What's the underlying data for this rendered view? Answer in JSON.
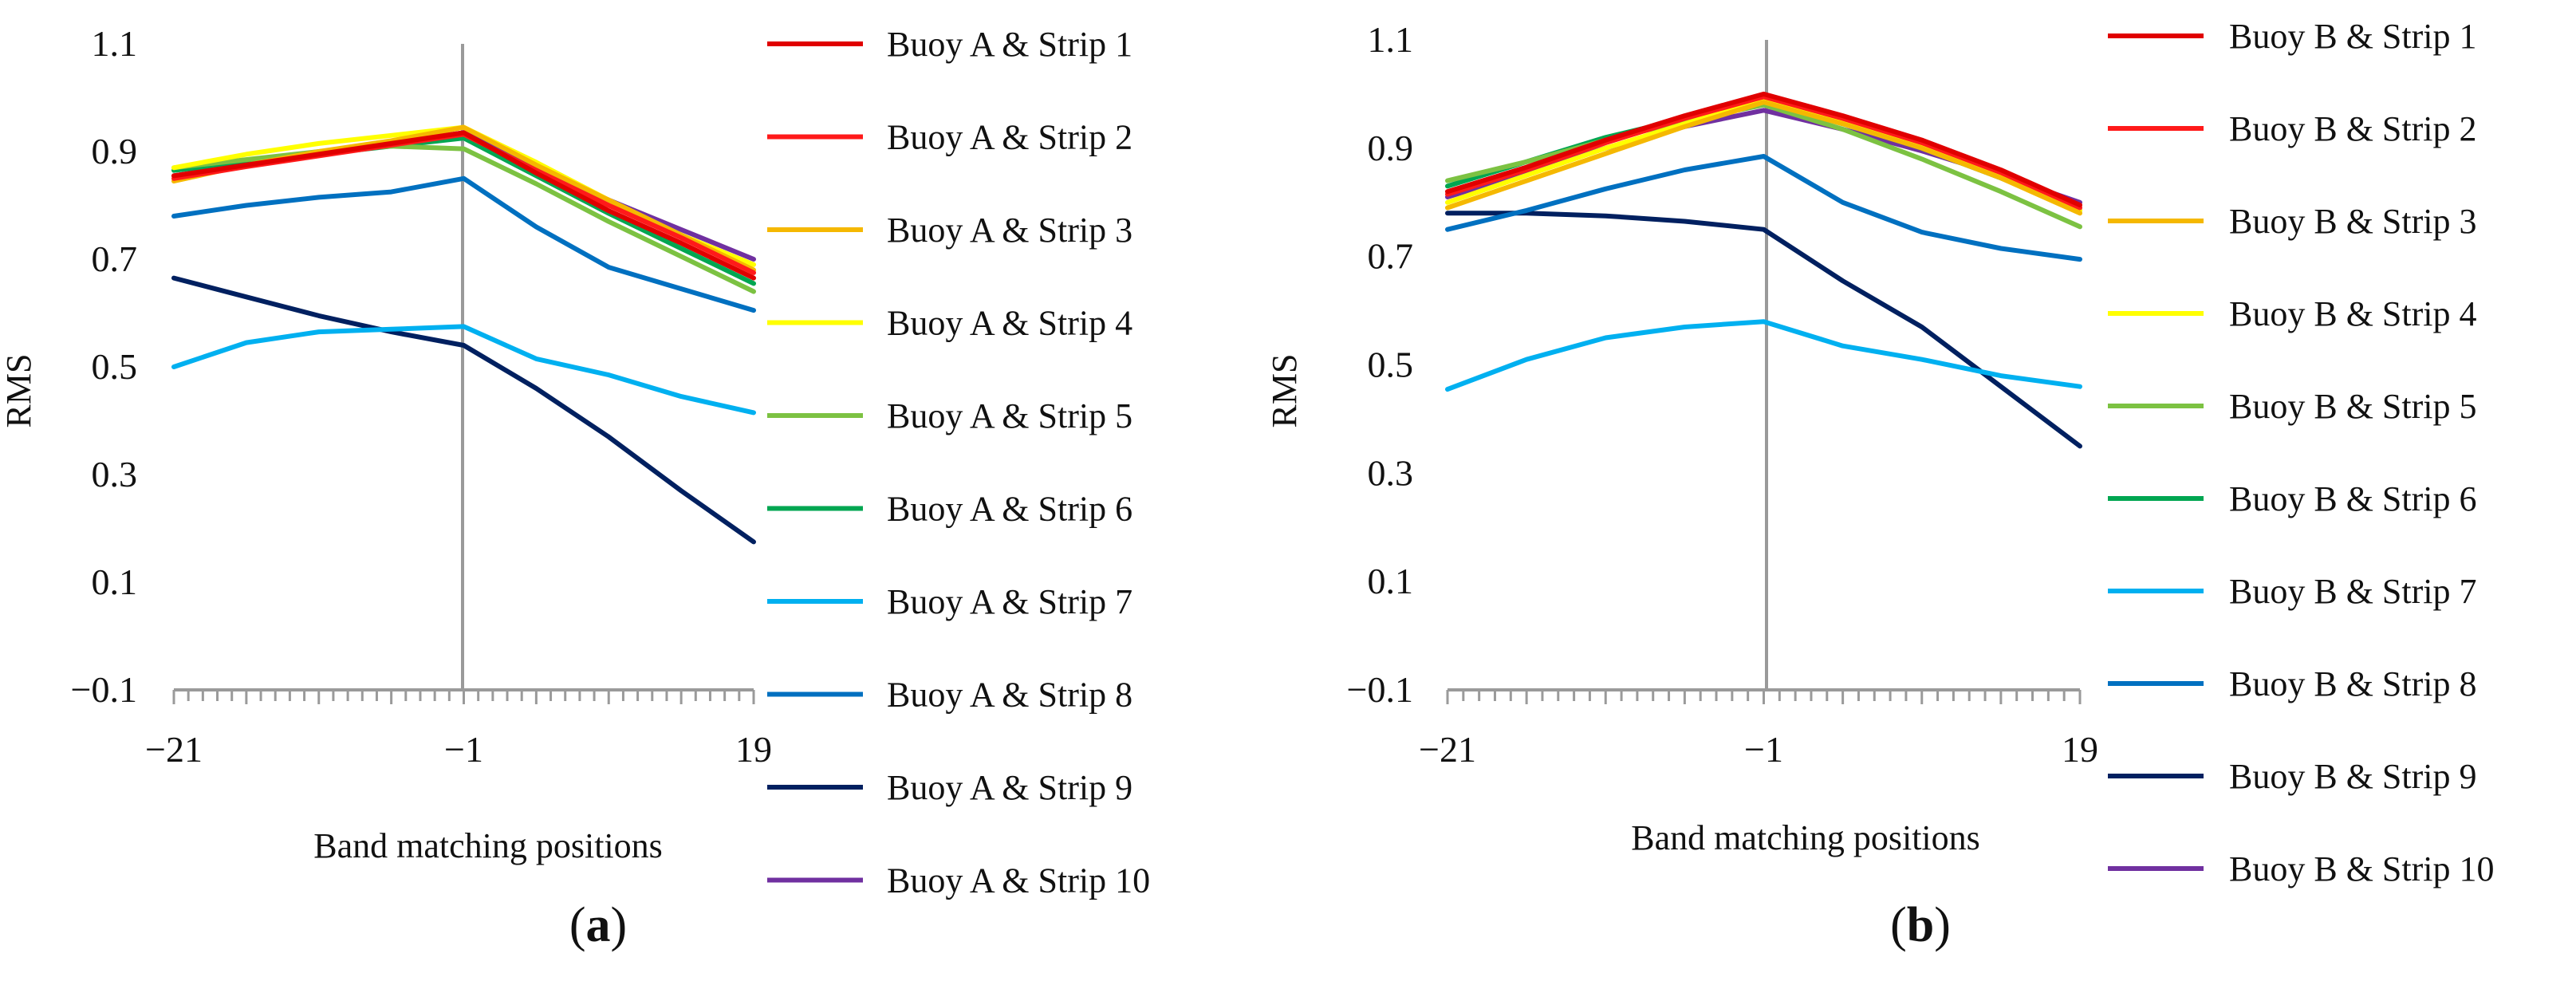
{
  "chart_data": [
    {
      "type": "line",
      "panel": "a",
      "panel_label": "a",
      "xlabel": "Band matching positions",
      "ylabel": "RMS",
      "xlim": [
        -21,
        19
      ],
      "ylim": [
        -0.1,
        1.1
      ],
      "yticks": [
        -0.1,
        0.1,
        0.3,
        0.5,
        0.7,
        0.9,
        1.1
      ],
      "ytick_labels": [
        "−0.1",
        "0.1",
        "0.3",
        "0.5",
        "0.7",
        "0.9",
        "1.1"
      ],
      "xticks": [
        -21,
        -1,
        19
      ],
      "xtick_labels": [
        "−21",
        "−1",
        "19"
      ],
      "x": [
        -21,
        -16,
        -11,
        -6,
        -1,
        4,
        9,
        14,
        19
      ],
      "series": [
        {
          "name": "Buoy A & Strip 1",
          "color": "#e00000",
          "values": [
            0.855,
            0.875,
            0.895,
            0.915,
            0.935,
            0.86,
            0.79,
            0.73,
            0.665
          ]
        },
        {
          "name": "Buoy A & Strip 2",
          "color": "#ff1a1a",
          "values": [
            0.85,
            0.872,
            0.892,
            0.912,
            0.932,
            0.865,
            0.8,
            0.74,
            0.675
          ]
        },
        {
          "name": "Buoy A & Strip 3",
          "color": "#f5b800",
          "values": [
            0.845,
            0.875,
            0.9,
            0.92,
            0.945,
            0.875,
            0.81,
            0.745,
            0.68
          ]
        },
        {
          "name": "Buoy A & Strip 4",
          "color": "#ffff00",
          "values": [
            0.87,
            0.895,
            0.915,
            0.93,
            0.945,
            0.88,
            0.81,
            0.745,
            0.69
          ]
        },
        {
          "name": "Buoy A & Strip 5",
          "color": "#7cc242",
          "values": [
            0.87,
            0.885,
            0.9,
            0.91,
            0.905,
            0.84,
            0.77,
            0.705,
            0.64
          ]
        },
        {
          "name": "Buoy A & Strip 6",
          "color": "#00a651",
          "values": [
            0.865,
            0.88,
            0.895,
            0.91,
            0.925,
            0.855,
            0.785,
            0.72,
            0.655
          ]
        },
        {
          "name": "Buoy A & Strip 7",
          "color": "#00b0f0",
          "values": [
            0.5,
            0.545,
            0.565,
            0.57,
            0.575,
            0.515,
            0.485,
            0.445,
            0.415
          ]
        },
        {
          "name": "Buoy A & Strip 8",
          "color": "#0070c0",
          "values": [
            0.78,
            0.8,
            0.815,
            0.825,
            0.85,
            0.76,
            0.685,
            0.645,
            0.605
          ]
        },
        {
          "name": "Buoy A & Strip 9",
          "color": "#002060",
          "values": [
            0.665,
            0.63,
            0.595,
            0.565,
            0.54,
            0.46,
            0.37,
            0.27,
            0.175
          ]
        },
        {
          "name": "Buoy A & Strip 10",
          "color": "#7030a0",
          "values": [
            0.855,
            0.875,
            0.895,
            0.915,
            0.935,
            0.87,
            0.81,
            0.755,
            0.7
          ]
        }
      ]
    },
    {
      "type": "line",
      "panel": "b",
      "panel_label": "b",
      "xlabel": "Band matching positions",
      "ylabel": "RMS",
      "xlim": [
        -21,
        19
      ],
      "ylim": [
        -0.1,
        1.1
      ],
      "yticks": [
        -0.1,
        0.1,
        0.3,
        0.5,
        0.7,
        0.9,
        1.1
      ],
      "ytick_labels": [
        "−0.1",
        "0.1",
        "0.3",
        "0.5",
        "0.7",
        "0.9",
        "1.1"
      ],
      "xticks": [
        -21,
        -1,
        19
      ],
      "xtick_labels": [
        "−21",
        "−1",
        "19"
      ],
      "x": [
        -21,
        -16,
        -11,
        -6,
        -1,
        4,
        9,
        14,
        19
      ],
      "series": [
        {
          "name": "Buoy B & Strip 1",
          "color": "#e00000",
          "values": [
            0.82,
            0.865,
            0.915,
            0.96,
            1.0,
            0.96,
            0.915,
            0.86,
            0.795
          ]
        },
        {
          "name": "Buoy B & Strip 2",
          "color": "#ff1a1a",
          "values": [
            0.815,
            0.86,
            0.91,
            0.955,
            0.995,
            0.955,
            0.91,
            0.855,
            0.79
          ]
        },
        {
          "name": "Buoy B & Strip 3",
          "color": "#f5b800",
          "values": [
            0.79,
            0.84,
            0.89,
            0.94,
            0.985,
            0.945,
            0.9,
            0.845,
            0.78
          ]
        },
        {
          "name": "Buoy B & Strip 4",
          "color": "#ffff00",
          "values": [
            0.8,
            0.85,
            0.9,
            0.945,
            0.99,
            0.95,
            0.905,
            0.85,
            0.785
          ]
        },
        {
          "name": "Buoy B & Strip 5",
          "color": "#7cc242",
          "values": [
            0.84,
            0.875,
            0.915,
            0.95,
            0.98,
            0.935,
            0.88,
            0.82,
            0.755
          ]
        },
        {
          "name": "Buoy B & Strip 6",
          "color": "#00a651",
          "values": [
            0.83,
            0.875,
            0.92,
            0.955,
            0.985,
            0.945,
            0.9,
            0.845,
            0.785
          ]
        },
        {
          "name": "Buoy B & Strip 7",
          "color": "#00b0f0",
          "values": [
            0.455,
            0.51,
            0.55,
            0.57,
            0.58,
            0.535,
            0.51,
            0.48,
            0.46
          ]
        },
        {
          "name": "Buoy B & Strip 8",
          "color": "#0070c0",
          "values": [
            0.75,
            0.785,
            0.825,
            0.86,
            0.885,
            0.8,
            0.745,
            0.715,
            0.695
          ]
        },
        {
          "name": "Buoy B & Strip 9",
          "color": "#002060",
          "values": [
            0.78,
            0.78,
            0.775,
            0.765,
            0.75,
            0.655,
            0.57,
            0.46,
            0.35
          ]
        },
        {
          "name": "Buoy B & Strip 10",
          "color": "#7030a0",
          "values": [
            0.81,
            0.855,
            0.9,
            0.94,
            0.97,
            0.935,
            0.895,
            0.85,
            0.8
          ]
        }
      ]
    }
  ]
}
